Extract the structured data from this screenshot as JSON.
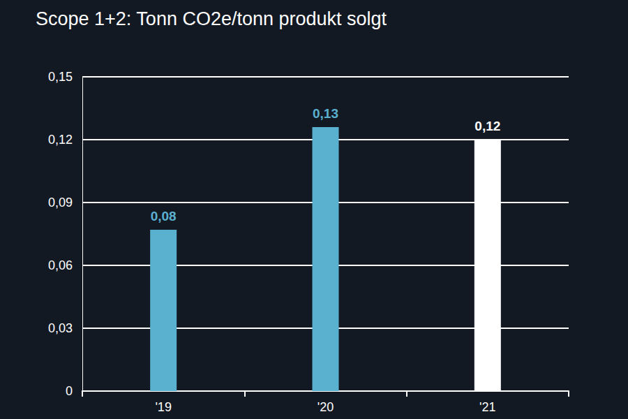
{
  "chart_data": {
    "type": "bar",
    "title": "Scope 1+2: Tonn CO2e/tonn produkt solgt",
    "categories": [
      "'19",
      "'20",
      "'21"
    ],
    "values": [
      0.077,
      0.126,
      0.12
    ],
    "value_labels": [
      "0,08",
      "0,13",
      "0,12"
    ],
    "colors": [
      "#5ab0cf",
      "#5ab0cf",
      "#ffffff"
    ],
    "ylim": [
      0,
      0.15
    ],
    "yticks": [
      0,
      {
        "value": 0.03,
        "label": "0,03"
      },
      {
        "value": 0.06,
        "label": "0,06"
      },
      {
        "value": 0.09,
        "label": "0,09"
      },
      {
        "value": 0.12,
        "label": "0,12"
      },
      {
        "value": 0.15,
        "label": "0,15"
      }
    ],
    "grid": true,
    "data_labels": true
  }
}
